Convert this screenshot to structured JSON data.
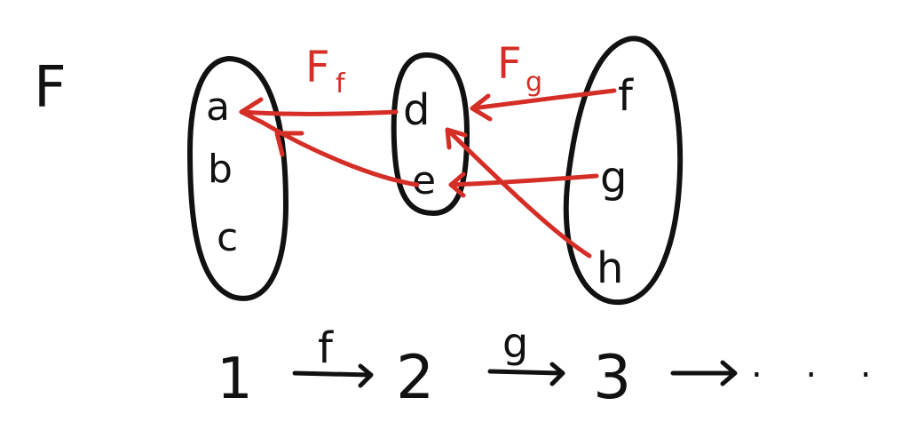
{
  "functor": {
    "label": "F"
  },
  "sets": [
    {
      "name": "set-1",
      "elements": [
        "a",
        "b",
        "c"
      ]
    },
    {
      "name": "set-2",
      "elements": [
        "d",
        "e"
      ]
    },
    {
      "name": "set-3",
      "elements": [
        "f",
        "g",
        "h"
      ]
    }
  ],
  "functor_maps": [
    {
      "label": "F",
      "subscript": "f"
    },
    {
      "label": "F",
      "subscript": "g"
    }
  ],
  "mappings": [
    {
      "from": "d",
      "to": "a"
    },
    {
      "from": "e",
      "to": "a"
    },
    {
      "from": "f",
      "to": "d"
    },
    {
      "from": "g",
      "to": "e"
    },
    {
      "from": "h",
      "to": "d"
    }
  ],
  "sequence": {
    "objects": [
      "1",
      "2",
      "3"
    ],
    "morphisms": [
      "f",
      "g"
    ],
    "continuation": ". . ."
  },
  "colors": {
    "ink": "#111111",
    "accent": "#d42e26"
  }
}
